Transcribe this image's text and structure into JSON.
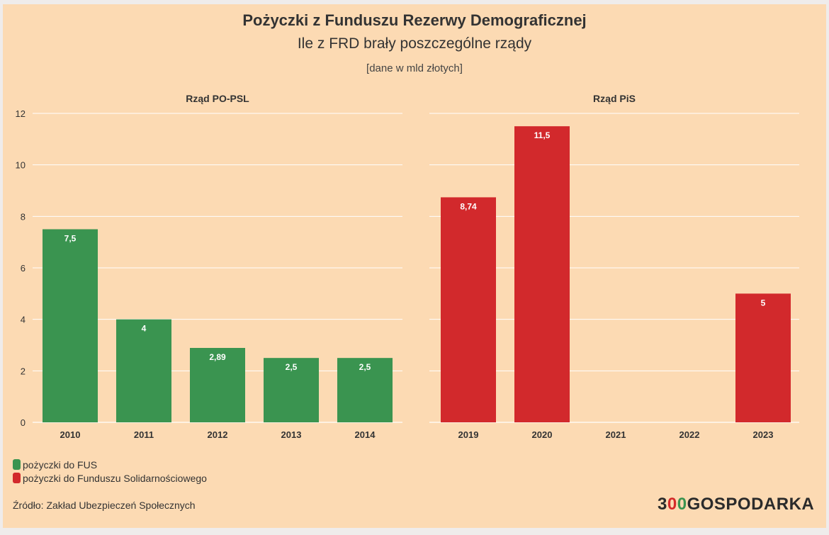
{
  "title": "Pożyczki z Funduszu Rezerwy Demograficznej",
  "subtitle": "Ile z FRD brały poszczególne rządy",
  "note": "[dane w mld złotych]",
  "colors": {
    "fus": "#3a9450",
    "solidarity": "#d2292c",
    "grid": "#ffffff"
  },
  "chart_data": {
    "type": "bar",
    "ylim": [
      0,
      12
    ],
    "yticks": [
      0,
      2,
      4,
      6,
      8,
      10,
      12
    ],
    "panels": [
      {
        "title": "Rząd PO-PSL",
        "series": "pożyczki do FUS",
        "color": "#3a9450",
        "categories": [
          "2010",
          "2011",
          "2012",
          "2013",
          "2014"
        ],
        "values": [
          7.5,
          4,
          2.89,
          2.5,
          2.5
        ],
        "labels": [
          "7,5",
          "4",
          "2,89",
          "2,5",
          "2,5"
        ]
      },
      {
        "title": "Rząd PiS",
        "series": "pożyczki do Funduszu Solidarnościowego",
        "color": "#d2292c",
        "categories": [
          "2019",
          "2020",
          "2021",
          "2022",
          "2023"
        ],
        "values": [
          8.74,
          11.5,
          0,
          0,
          5
        ],
        "labels": [
          "8,74",
          "11,5",
          "",
          "",
          "5"
        ]
      }
    ]
  },
  "legend": {
    "fus": "pożyczki do FUS",
    "solidarity": "pożyczki do Funduszu Solidarnościowego"
  },
  "source": "Źródło: Zakład Ubezpieczeń Społecznych",
  "logo": {
    "part1": "3",
    "part2": "0",
    "part3": "0",
    "part4": "GOSPODARKA"
  }
}
